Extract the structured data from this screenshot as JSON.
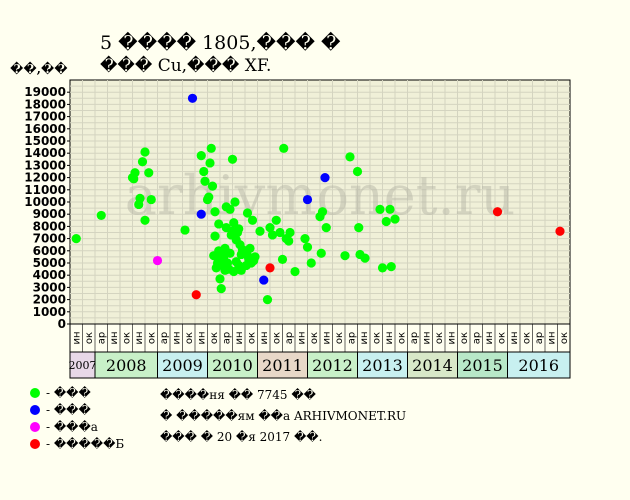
{
  "header": {
    "title_line1": "5 ���� 1805,��� �",
    "title_line2": "��� Cu,��� XF."
  },
  "watermark": "arhivmonet.ru",
  "legend": [
    {
      "label": "- ���",
      "color": "#00ff00"
    },
    {
      "label": "- ���",
      "color": "#0000ff"
    },
    {
      "label": "- ���а",
      "color": "#ff00ff"
    },
    {
      "label": "- �����Б",
      "color": "#ff0000"
    }
  ],
  "notes": [
    "����ня �� 7745 ��",
    "� �����ям ��а ARHIVMONET.RU",
    "��� � 20 �я 2017 ��."
  ],
  "colors": {
    "plot_bg": "#f0f0d8",
    "grid": "#d4d4c0",
    "green": "#00ff00",
    "blue": "#0000ff",
    "magenta": "#ff00ff",
    "red": "#ff0000"
  },
  "chart_data": {
    "type": "scatter",
    "ylabel": "��,��",
    "ylim": [
      0,
      20000
    ],
    "yticks": [
      0,
      1000,
      2000,
      3000,
      4000,
      5000,
      6000,
      7000,
      8000,
      9000,
      10000,
      11000,
      12000,
      13000,
      14000,
      15000,
      16000,
      17000,
      18000,
      19000
    ],
    "xlim": [
      0,
      40
    ],
    "month_labels": [
      "ин",
      "ок",
      "ар",
      "ин",
      "ок",
      "ин",
      "ок",
      "ар",
      "ин",
      "ок",
      "ин",
      "ок",
      "ар",
      "ин",
      "ок",
      "ин",
      "ок",
      "ар",
      "ин",
      "ок",
      "ин",
      "ок",
      "ар",
      "ин",
      "ок",
      "ин",
      "ок",
      "ар",
      "ин",
      "ок",
      "ин",
      "ок",
      "ар",
      "ин",
      "ок",
      "ин",
      "ок",
      "ар",
      "ин",
      "ок"
    ],
    "years": [
      {
        "label": "2007",
        "start": 0,
        "end": 2,
        "color": "#e8d8e8"
      },
      {
        "label": "2008",
        "start": 2,
        "end": 7,
        "color": "#c8f0c8"
      },
      {
        "label": "2009",
        "start": 7,
        "end": 11,
        "color": "#c8f0f0"
      },
      {
        "label": "2010",
        "start": 11,
        "end": 15,
        "color": "#c8f0c8"
      },
      {
        "label": "2011",
        "start": 15,
        "end": 19,
        "color": "#e8d8c8"
      },
      {
        "label": "2012",
        "start": 19,
        "end": 23,
        "color": "#c8f0c8"
      },
      {
        "label": "2013",
        "start": 23,
        "end": 27,
        "color": "#c8f0f0"
      },
      {
        "label": "2014",
        "start": 27,
        "end": 31,
        "color": "#d8e8c8"
      },
      {
        "label": "2015",
        "start": 31,
        "end": 35,
        "color": "#b8e8c8"
      },
      {
        "label": "2016",
        "start": 35,
        "end": 40,
        "color": "#c8f0f0"
      }
    ],
    "series": [
      {
        "color": "green",
        "points": [
          [
            0.5,
            7000
          ],
          [
            2.5,
            8900
          ],
          [
            5,
            12000
          ],
          [
            5.1,
            11900
          ],
          [
            5.2,
            12400
          ],
          [
            5.5,
            9800
          ],
          [
            5.6,
            10300
          ],
          [
            5.8,
            13300
          ],
          [
            6,
            14100
          ],
          [
            6,
            8500
          ],
          [
            6.3,
            12400
          ],
          [
            6.5,
            10200
          ],
          [
            9.2,
            7700
          ],
          [
            10.5,
            13800
          ],
          [
            10.7,
            12500
          ],
          [
            10.8,
            11700
          ],
          [
            11,
            10200
          ],
          [
            11.1,
            10400
          ],
          [
            11.2,
            13200
          ],
          [
            11.3,
            14400
          ],
          [
            11.4,
            11300
          ],
          [
            11.5,
            5600
          ],
          [
            11.6,
            9200
          ],
          [
            11.6,
            7200
          ],
          [
            11.7,
            4600
          ],
          [
            11.8,
            5000
          ],
          [
            11.9,
            6000
          ],
          [
            11.9,
            8200
          ],
          [
            12,
            3700
          ],
          [
            12,
            5300
          ],
          [
            12,
            5800
          ],
          [
            12.1,
            2900
          ],
          [
            12.2,
            4800
          ],
          [
            12.3,
            5500
          ],
          [
            12.4,
            6200
          ],
          [
            12.4,
            4400
          ],
          [
            12.5,
            9600
          ],
          [
            12.5,
            7900
          ],
          [
            12.6,
            5000
          ],
          [
            12.7,
            4500
          ],
          [
            12.8,
            9400
          ],
          [
            12.8,
            5800
          ],
          [
            12.9,
            7300
          ],
          [
            13,
            7600
          ],
          [
            13,
            13500
          ],
          [
            13.1,
            4300
          ],
          [
            13.1,
            8300
          ],
          [
            13.2,
            10000
          ],
          [
            13.3,
            6900
          ],
          [
            13.3,
            5100
          ],
          [
            13.4,
            7500
          ],
          [
            13.5,
            7800
          ],
          [
            13.5,
            4800
          ],
          [
            13.6,
            6500
          ],
          [
            13.7,
            4400
          ],
          [
            13.7,
            5700
          ],
          [
            13.8,
            6100
          ],
          [
            14,
            6000
          ],
          [
            14.1,
            4800
          ],
          [
            14.2,
            9100
          ],
          [
            14.2,
            5600
          ],
          [
            14.3,
            5300
          ],
          [
            14.4,
            6200
          ],
          [
            14.5,
            5000
          ],
          [
            14.6,
            8500
          ],
          [
            14.7,
            5200
          ],
          [
            14.8,
            5500
          ],
          [
            15.2,
            7600
          ],
          [
            15.8,
            2000
          ],
          [
            16,
            7900
          ],
          [
            16.2,
            7300
          ],
          [
            16.5,
            8500
          ],
          [
            16.8,
            7500
          ],
          [
            17,
            5300
          ],
          [
            17.1,
            14400
          ],
          [
            17.3,
            7000
          ],
          [
            17.5,
            6800
          ],
          [
            17.6,
            7500
          ],
          [
            18,
            4300
          ],
          [
            18.8,
            7000
          ],
          [
            19,
            6300
          ],
          [
            19.3,
            5000
          ],
          [
            20.1,
            5800
          ],
          [
            20,
            8800
          ],
          [
            20.2,
            9200
          ],
          [
            20.5,
            7900
          ],
          [
            22,
            5600
          ],
          [
            22.4,
            13700
          ],
          [
            23,
            12500
          ],
          [
            23.1,
            7900
          ],
          [
            23.2,
            5700
          ],
          [
            23.6,
            5400
          ],
          [
            24.8,
            9400
          ],
          [
            25,
            4600
          ],
          [
            25.3,
            8400
          ],
          [
            25.6,
            9400
          ],
          [
            25.7,
            4700
          ],
          [
            26,
            8600
          ]
        ]
      },
      {
        "color": "blue",
        "points": [
          [
            9.8,
            18500
          ],
          [
            10.5,
            9000
          ],
          [
            15.5,
            3600
          ],
          [
            19,
            10200
          ],
          [
            20.4,
            12000
          ]
        ]
      },
      {
        "color": "magenta",
        "points": [
          [
            7,
            5200
          ]
        ]
      },
      {
        "color": "red",
        "points": [
          [
            10.1,
            2400
          ],
          [
            16,
            4600
          ],
          [
            34.2,
            9200
          ],
          [
            39.2,
            7600
          ]
        ]
      }
    ]
  }
}
